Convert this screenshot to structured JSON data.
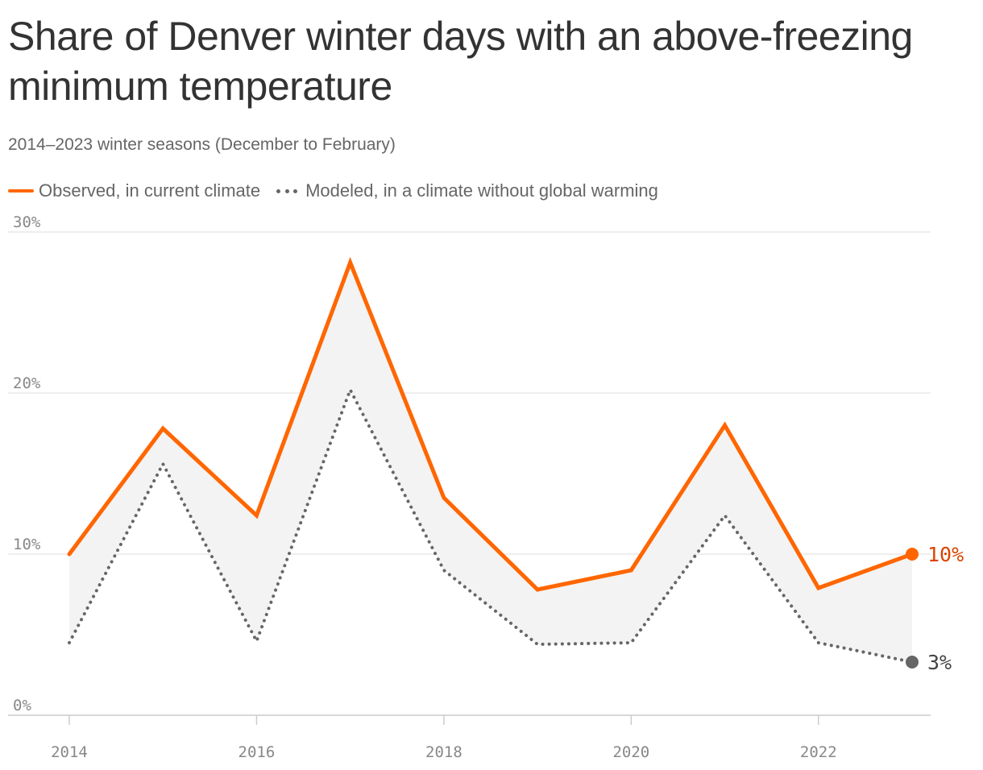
{
  "header": {
    "title": "Share of Denver winter days with an above-freezing minimum temperature",
    "subtitle": "2014–2023 winter seasons (December to February)"
  },
  "legend": {
    "items": [
      {
        "label": "Observed, in current climate",
        "style": "solid",
        "color": "#ff6600"
      },
      {
        "label": "Modeled, in a climate without global warming",
        "style": "dotted",
        "color": "#666666"
      }
    ]
  },
  "colors": {
    "observed": "#ff6600",
    "observed_label": "#d94400",
    "modeled": "#666666",
    "gap_fill": "#f3f3f3",
    "grid": "#dddddd",
    "axis": "#cccccc"
  },
  "chart_data": {
    "type": "line",
    "title": "Share of Denver winter days with an above-freezing minimum temperature",
    "subtitle": "2014–2023 winter seasons (December to February)",
    "x": [
      2014,
      2015,
      2016,
      2017,
      2018,
      2019,
      2020,
      2021,
      2022,
      2023
    ],
    "series": [
      {
        "name": "Observed, in current climate",
        "style": "solid",
        "color": "#ff6600",
        "values": [
          10.0,
          17.8,
          12.4,
          28.1,
          13.5,
          7.8,
          9.0,
          18.0,
          7.9,
          10.0
        ]
      },
      {
        "name": "Modeled, in a climate without global warming",
        "style": "dotted",
        "color": "#666666",
        "values": [
          4.5,
          15.6,
          4.6,
          20.2,
          9.0,
          4.4,
          4.5,
          12.4,
          4.5,
          3.3
        ]
      }
    ],
    "end_labels": [
      "10%",
      "3%"
    ],
    "ylim": [
      0,
      30
    ],
    "yticks": [
      0,
      10,
      20,
      30
    ],
    "ytick_labels": [
      "0%",
      "10%",
      "20%",
      "30%"
    ],
    "xlim": [
      2014,
      2023
    ],
    "xticks": [
      2014,
      2016,
      2018,
      2020,
      2022
    ],
    "xtick_labels": [
      "2014",
      "2016",
      "2018",
      "2020",
      "2022"
    ],
    "grid": true,
    "legend_position": "top-left",
    "shaded_gap_between_series": true
  }
}
